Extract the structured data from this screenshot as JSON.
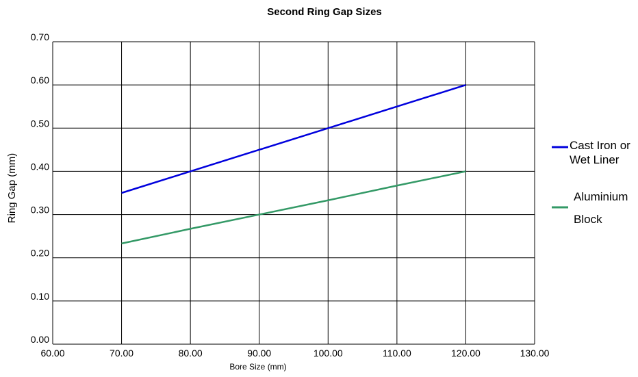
{
  "chart_data": {
    "type": "line",
    "title": "Second Ring Gap Sizes",
    "xlabel": "Bore Size (mm)",
    "ylabel": "Ring Gap (mm)",
    "xlim": [
      60,
      130
    ],
    "ylim": [
      0,
      0.7
    ],
    "x_ticks": [
      "60.00",
      "70.00",
      "80.00",
      "90.00",
      "100.00",
      "110.00",
      "120.00",
      "130.00"
    ],
    "y_ticks": [
      "0.00",
      "0.10",
      "0.20",
      "0.30",
      "0.40",
      "0.50",
      "0.60",
      "0.70"
    ],
    "grid": true,
    "legend_position": "right",
    "series": [
      {
        "name": "Cast Iron or Wet Liner",
        "legend_lines": [
          "Cast Iron or",
          "Wet Liner"
        ],
        "color": "#0000dd",
        "x": [
          70,
          80,
          90,
          100,
          110,
          120
        ],
        "y": [
          0.35,
          0.4,
          0.45,
          0.5,
          0.55,
          0.6
        ]
      },
      {
        "name": "Aluminium Block",
        "legend_lines": [
          "Aluminium",
          "Block"
        ],
        "color": "#339966",
        "x": [
          70,
          80,
          90,
          100,
          110,
          120
        ],
        "y": [
          0.233,
          0.267,
          0.3,
          0.333,
          0.367,
          0.4
        ]
      }
    ]
  }
}
